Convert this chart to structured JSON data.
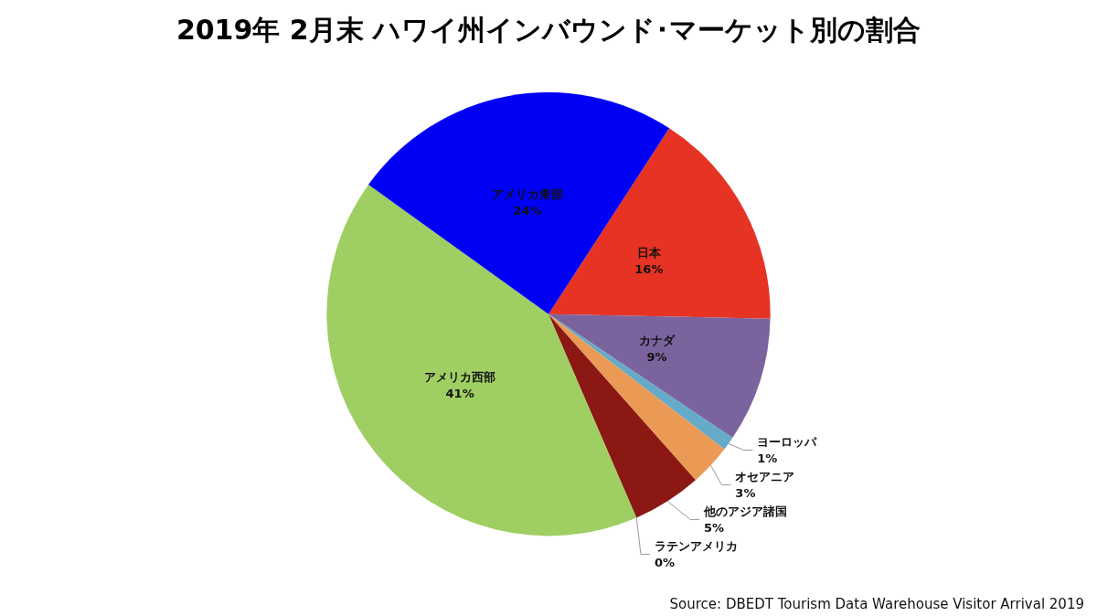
{
  "chart_data": {
    "type": "pie",
    "title": "2019年 2月末 ハワイ州インバウンド･マーケット別の割合",
    "categories": [
      "日本",
      "カナダ",
      "ヨーロッパ",
      "オセアニア",
      "他のアジア諸国",
      "ラテンアメリカ",
      "アメリカ西部",
      "アメリカ東部"
    ],
    "values": [
      16,
      9,
      1,
      3,
      5,
      0,
      41,
      24
    ],
    "colors": [
      "#e63323",
      "#7b639e",
      "#65aac8",
      "#ea9a55",
      "#8b1812",
      "#0a1a8c",
      "#9fce63",
      "#0000f5"
    ],
    "value_labels": [
      "16%",
      "9%",
      "1%",
      "3%",
      "5%",
      "0%",
      "41%",
      "24%"
    ],
    "annotations": [
      "Source: DBEDT Tourism Data Warehouse Visitor Arrival 2019"
    ]
  }
}
